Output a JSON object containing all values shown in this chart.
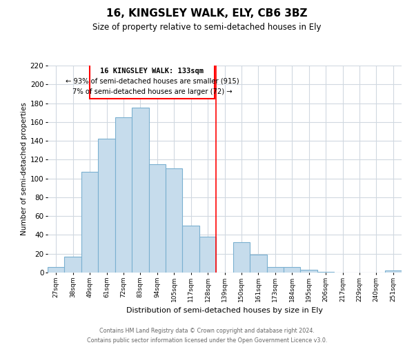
{
  "title": "16, KINGSLEY WALK, ELY, CB6 3BZ",
  "subtitle": "Size of property relative to semi-detached houses in Ely",
  "xlabel": "Distribution of semi-detached houses by size in Ely",
  "ylabel": "Number of semi-detached properties",
  "bar_labels": [
    "27sqm",
    "38sqm",
    "49sqm",
    "61sqm",
    "72sqm",
    "83sqm",
    "94sqm",
    "105sqm",
    "117sqm",
    "128sqm",
    "139sqm",
    "150sqm",
    "161sqm",
    "173sqm",
    "184sqm",
    "195sqm",
    "206sqm",
    "217sqm",
    "229sqm",
    "240sqm",
    "251sqm"
  ],
  "bar_values": [
    6,
    17,
    107,
    142,
    165,
    175,
    115,
    111,
    50,
    38,
    0,
    32,
    19,
    6,
    6,
    3,
    1,
    0,
    0,
    0,
    2
  ],
  "bar_color": "#c6dcec",
  "bar_edge_color": "#7ab0d0",
  "property_line_x": 9.5,
  "pct_smaller": 93,
  "n_smaller": 915,
  "pct_larger": 7,
  "n_larger": 72,
  "annotation_title": "16 KINGSLEY WALK: 133sqm",
  "ylim": [
    0,
    220
  ],
  "yticks": [
    0,
    20,
    40,
    60,
    80,
    100,
    120,
    140,
    160,
    180,
    200,
    220
  ],
  "footer_line1": "Contains HM Land Registry data © Crown copyright and database right 2024.",
  "footer_line2": "Contains public sector information licensed under the Open Government Licence v3.0.",
  "grid_color": "#d0d8e0"
}
